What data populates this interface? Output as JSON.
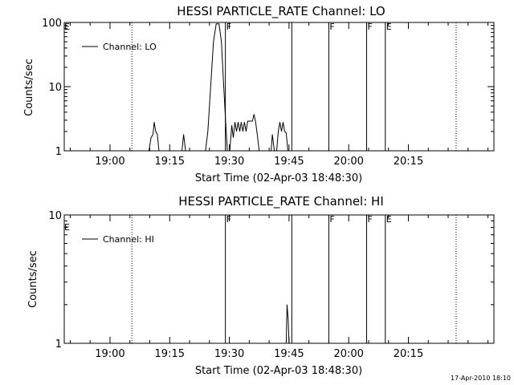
{
  "timestamp": "17-Apr-2010 18:10",
  "chart_data": [
    {
      "type": "line",
      "title": "HESSI PARTICLE_RATE Channel: LO",
      "xlabel": "Start Time (02-Apr-03 18:48:30)",
      "ylabel": "Counts/sec",
      "y_scale": "log",
      "ylim": [
        1,
        100
      ],
      "y_ticks": [
        "1",
        "10",
        "100"
      ],
      "xlim_minutes_after_start": [
        0,
        108
      ],
      "x_ticks": [
        {
          "label": "19:00",
          "minute": 11.5
        },
        {
          "label": "19:15",
          "minute": 26.5
        },
        {
          "label": "19:30",
          "minute": 41.5
        },
        {
          "label": "19:45",
          "minute": 56.5
        },
        {
          "label": "20:00",
          "minute": 71.5
        },
        {
          "label": "20:15",
          "minute": 86.5
        }
      ],
      "legend": {
        "label": "Channel: LO",
        "position": "top-left"
      },
      "series": [
        {
          "name": "Channel: LO",
          "points": [
            [
              21.3,
              1
            ],
            [
              21.8,
              1.6
            ],
            [
              22.3,
              1.8
            ],
            [
              22.6,
              2.8
            ],
            [
              23.0,
              2.0
            ],
            [
              23.4,
              1.8
            ],
            [
              23.8,
              1
            ],
            [
              29.6,
              1
            ],
            [
              30.0,
              1.8
            ],
            [
              30.5,
              1
            ],
            [
              35.5,
              1
            ],
            [
              36.1,
              2.0
            ],
            [
              36.8,
              10
            ],
            [
              37.5,
              50
            ],
            [
              38.2,
              95
            ],
            [
              38.9,
              95
            ],
            [
              39.5,
              50
            ],
            [
              40.1,
              10
            ],
            [
              40.6,
              2.6
            ],
            [
              41.0,
              1
            ],
            [
              41.6,
              1
            ],
            [
              42.1,
              2.5
            ],
            [
              42.5,
              1.6
            ],
            [
              42.9,
              2.8
            ],
            [
              43.3,
              2.0
            ],
            [
              43.7,
              2.8
            ],
            [
              44.1,
              2.0
            ],
            [
              44.5,
              2.8
            ],
            [
              44.9,
              2.0
            ],
            [
              45.3,
              2.8
            ],
            [
              45.7,
              2.0
            ],
            [
              46.1,
              2.9
            ],
            [
              47.3,
              2.9
            ],
            [
              47.7,
              3.7
            ],
            [
              48.1,
              2.8
            ],
            [
              48.5,
              1.8
            ],
            [
              49.0,
              1
            ],
            [
              52.0,
              1
            ],
            [
              52.3,
              1.8
            ],
            [
              52.8,
              1
            ],
            [
              53.4,
              1
            ],
            [
              53.8,
              2.0
            ],
            [
              54.2,
              2.8
            ],
            [
              54.6,
              2.0
            ],
            [
              55.0,
              2.8
            ],
            [
              55.4,
              2.0
            ],
            [
              55.8,
              1.9
            ],
            [
              56.2,
              1
            ]
          ]
        }
      ],
      "flag_lines": [
        {
          "minute": 17.0,
          "style": "dotted",
          "label": ""
        },
        {
          "minute": 40.5,
          "style": "solid",
          "label": "F"
        },
        {
          "minute": 57.2,
          "style": "solid",
          "label": ""
        },
        {
          "minute": 66.5,
          "style": "solid",
          "label": "F"
        },
        {
          "minute": 76.0,
          "style": "solid",
          "label": "F"
        },
        {
          "minute": 80.7,
          "style": "solid",
          "label": "E"
        },
        {
          "minute": 98.5,
          "style": "dotted",
          "label": ""
        }
      ],
      "start_flag_label": "E"
    },
    {
      "type": "line",
      "title": "HESSI PARTICLE_RATE Channel: HI",
      "xlabel": "Start Time (02-Apr-03 18:48:30)",
      "ylabel": "Counts/sec",
      "y_scale": "log",
      "ylim": [
        1,
        10
      ],
      "y_ticks": [
        "1",
        "10"
      ],
      "xlim_minutes_after_start": [
        0,
        108
      ],
      "x_ticks": [
        {
          "label": "19:00",
          "minute": 11.5
        },
        {
          "label": "19:15",
          "minute": 26.5
        },
        {
          "label": "19:30",
          "minute": 41.5
        },
        {
          "label": "19:45",
          "minute": 56.5
        },
        {
          "label": "20:00",
          "minute": 71.5
        },
        {
          "label": "20:15",
          "minute": 86.5
        }
      ],
      "legend": {
        "label": "Channel: HI",
        "position": "top-left"
      },
      "series": [
        {
          "name": "Channel: HI",
          "points": [
            [
              55.8,
              1
            ],
            [
              56.0,
              2.0
            ],
            [
              56.3,
              1.5
            ],
            [
              56.5,
              1
            ]
          ]
        }
      ],
      "flag_lines": [
        {
          "minute": 17.0,
          "style": "dotted",
          "label": ""
        },
        {
          "minute": 40.5,
          "style": "solid",
          "label": "F"
        },
        {
          "minute": 57.2,
          "style": "solid",
          "label": ""
        },
        {
          "minute": 66.5,
          "style": "solid",
          "label": "F"
        },
        {
          "minute": 76.0,
          "style": "solid",
          "label": "F"
        },
        {
          "minute": 80.7,
          "style": "solid",
          "label": "E"
        },
        {
          "minute": 98.5,
          "style": "dotted",
          "label": ""
        }
      ],
      "start_flag_label": "E"
    }
  ]
}
